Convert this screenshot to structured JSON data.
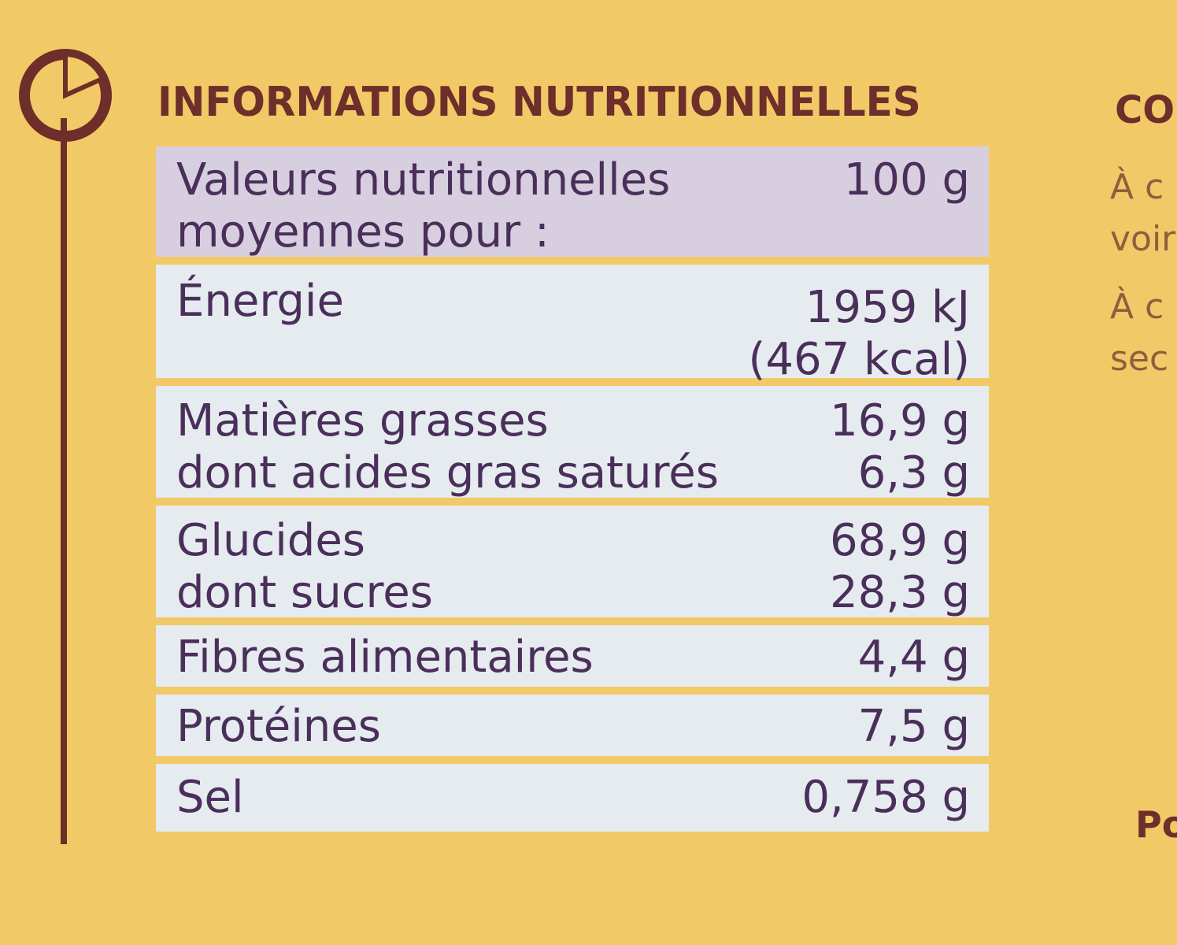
{
  "heading": "INFORMATIONS NUTRITIONNELLES",
  "table": {
    "header": {
      "label_line1": "Valeurs nutritionnelles",
      "label_line2": "moyennes pour :",
      "value": "100 g"
    },
    "energy": {
      "label": "Énergie",
      "value_kj": "1959 kJ",
      "value_kcal": "(467 kcal)"
    },
    "fat": {
      "label": "Matières grasses",
      "value": "16,9 g",
      "sub_label": "dont acides gras saturés",
      "sub_value": "6,3 g"
    },
    "carbs": {
      "label": "Glucides",
      "value": "68,9 g",
      "sub_label": "dont sucres",
      "sub_value": "28,3 g"
    },
    "fibre": {
      "label": "Fibres alimentaires",
      "value": "4,4 g"
    },
    "protein": {
      "label": "Protéines",
      "value": "7,5 g"
    },
    "salt": {
      "label": "Sel",
      "value": "0,758 g"
    }
  },
  "side": {
    "heading": "CO",
    "lines": [
      "À c",
      "voir",
      "À c",
      "sec"
    ],
    "footer": "Po"
  },
  "colors": {
    "background": "#f2c967",
    "brown": "#6e2e2a",
    "table_row": "#e6ebf0",
    "table_header": "#d7cfe0",
    "text": "#4a2f5a"
  },
  "icons": {
    "logo": "pie-chart-icon"
  }
}
